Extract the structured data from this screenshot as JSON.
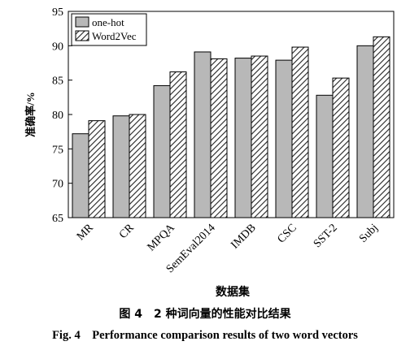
{
  "chart_data": {
    "type": "bar",
    "categories": [
      "MR",
      "CR",
      "MPQA",
      "SemEval2014",
      "IMDB",
      "CSC",
      "SST-2",
      "Subj"
    ],
    "series": [
      {
        "name": "one-hot",
        "values": [
          77.2,
          79.8,
          84.2,
          89.1,
          88.2,
          87.9,
          82.8,
          90.0
        ],
        "pattern": "solid",
        "color": "#b8b8b8"
      },
      {
        "name": "Word2Vec",
        "values": [
          79.1,
          80.0,
          86.2,
          88.1,
          88.5,
          89.8,
          85.3,
          91.3
        ],
        "pattern": "hatched",
        "color": "#555555"
      }
    ],
    "xlabel": "数据集",
    "ylabel": "准确率/%",
    "ylim": [
      65,
      95
    ],
    "yticks": [
      65,
      70,
      75,
      80,
      85,
      90,
      95
    ],
    "legend": "top-left",
    "grid": false
  },
  "caption": {
    "cn": "图 4　2 种词向量的性能对比结果",
    "en": "Fig. 4　Performance comparison results of two word vectors"
  }
}
